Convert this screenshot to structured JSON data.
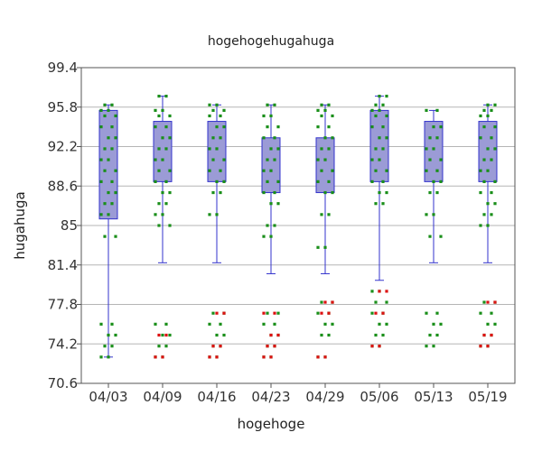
{
  "chart_data": {
    "type": "box",
    "title": "hogehogehugahuga",
    "xlabel": "hogehoge",
    "ylabel": "hugahuga",
    "ylim": [
      70.6,
      99.4
    ],
    "yticks": [
      "70.6",
      "74.2",
      "77.8",
      "81.4",
      "85",
      "88.6",
      "92.2",
      "95.8",
      "99.4"
    ],
    "grid": true,
    "categories": [
      "04/03",
      "04/09",
      "04/16",
      "04/23",
      "04/29",
      "05/06",
      "05/13",
      "05/19"
    ],
    "series": [
      {
        "boxes": [
          {
            "whisker_low": 73.0,
            "q1": 85.6,
            "median": 90.0,
            "q3": 95.5,
            "whisker_high": 96.0
          },
          {
            "whisker_low": 81.6,
            "q1": 89.0,
            "median": 92.0,
            "q3": 94.5,
            "whisker_high": 96.8
          },
          {
            "whisker_low": 81.6,
            "q1": 89.0,
            "median": 91.0,
            "q3": 94.5,
            "whisker_high": 96.0
          },
          {
            "whisker_low": 80.6,
            "q1": 88.0,
            "median": 90.0,
            "q3": 93.0,
            "whisker_high": 96.0
          },
          {
            "whisker_low": 80.6,
            "q1": 88.0,
            "median": 90.0,
            "q3": 93.0,
            "whisker_high": 96.0
          },
          {
            "whisker_low": 80.0,
            "q1": 89.0,
            "median": 91.0,
            "q3": 95.5,
            "whisker_high": 96.8
          },
          {
            "whisker_low": 81.6,
            "q1": 89.0,
            "median": 90.0,
            "q3": 94.5,
            "whisker_high": 95.5
          },
          {
            "whisker_low": 81.6,
            "q1": 89.0,
            "median": 91.0,
            "q3": 94.5,
            "whisker_high": 96.0
          }
        ]
      }
    ],
    "points_green": [
      [
        73,
        74,
        75,
        76,
        84,
        86,
        87,
        88,
        89,
        90,
        91,
        92,
        93,
        94,
        95,
        95.5,
        96
      ],
      [
        73,
        74,
        75,
        76,
        85,
        86,
        87,
        88,
        89,
        90,
        91,
        92,
        93,
        94,
        95,
        95.5,
        96.8
      ],
      [
        73,
        74,
        75,
        76,
        77,
        86,
        88,
        89,
        90,
        91,
        92,
        93,
        94,
        95,
        95.5,
        96
      ],
      [
        73,
        74,
        75,
        76,
        77,
        84,
        85,
        87,
        88,
        89,
        90,
        91,
        92,
        93,
        94,
        95,
        96
      ],
      [
        73,
        75,
        76,
        77,
        78,
        83,
        86,
        88,
        89,
        90,
        91,
        92,
        93,
        94,
        95,
        95.5,
        96
      ],
      [
        74,
        75,
        76,
        77,
        78,
        79,
        87,
        88,
        89,
        90,
        91,
        92,
        93,
        94,
        95,
        95.5,
        96,
        96.8
      ],
      [
        74,
        75,
        76,
        77,
        84,
        86,
        88,
        89,
        90,
        91,
        92,
        93,
        94,
        95.5
      ],
      [
        74,
        75,
        76,
        77,
        78,
        85,
        86,
        87,
        88,
        89,
        90,
        91,
        92,
        93,
        94,
        95,
        95.5,
        96
      ]
    ],
    "points_red": [
      [],
      [
        73,
        75
      ],
      [
        73,
        74,
        77
      ],
      [
        73,
        74,
        75,
        77
      ],
      [
        73,
        77,
        78
      ],
      [
        74,
        77,
        79
      ],
      [],
      [
        74,
        75,
        78
      ]
    ],
    "colors": {
      "box_fill": "#9b9bd6",
      "box_stroke": "#3333cc",
      "point_green": "#1a8f1a",
      "point_red": "#dd1111",
      "grid": "#b5b5b5"
    }
  }
}
